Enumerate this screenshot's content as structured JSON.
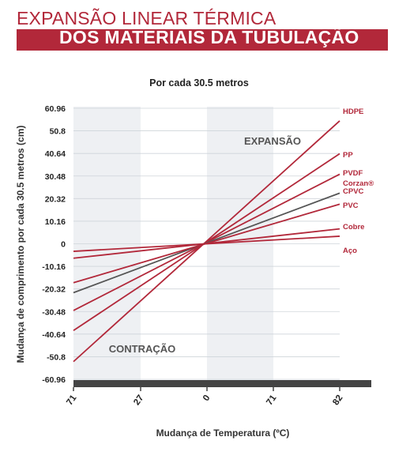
{
  "header": {
    "line1": "EXPANSÃO LINEAR TÉRMICA",
    "line2": "DOS MATERIAIS DA TUBULAÇÃO"
  },
  "colors": {
    "brand": "#b2283a",
    "series_red": "#b2283a",
    "series_gray": "#555555",
    "axis_bar": "#444444",
    "band": "#eef0f3"
  },
  "chart_data": {
    "type": "line",
    "title": "Por cada 30.5 metros",
    "xlabel": "Mudança de Temperatura (ºC)",
    "ylabel": "Mudança de comprimento por cada 30.5 metros (cm)",
    "x_ticks": [
      "71",
      "27",
      "0",
      "71",
      "82"
    ],
    "x_tick_positions": [
      -71,
      -27,
      0,
      71,
      82
    ],
    "xlim": [
      -71,
      82
    ],
    "y_ticks": [
      "60.96",
      "50.8",
      "40.64",
      "30.48",
      "20.32",
      "10.16",
      "0",
      "-10.16",
      "-20.32",
      "-30.48",
      "-40.64",
      "-50.8",
      "-60.96"
    ],
    "ylim": [
      -60.96,
      60.96
    ],
    "grid": "horizontal",
    "shaded_bands": [
      [
        -71,
        -27
      ],
      [
        0,
        71
      ]
    ],
    "annotations": [
      "EXPANSÃO",
      "CONTRAÇÃO"
    ],
    "series": [
      {
        "name": "HDPE",
        "x": [
          -71,
          82
        ],
        "y": [
          -53.0,
          55.3
        ],
        "color": "#b2283a"
      },
      {
        "name": "PP",
        "x": [
          -71,
          82
        ],
        "y": [
          -39.0,
          40.5
        ],
        "color": "#b2283a"
      },
      {
        "name": "PVDF",
        "x": [
          -71,
          82
        ],
        "y": [
          -30.0,
          31.3
        ],
        "color": "#b2283a"
      },
      {
        "name": "Corzan® CPVC",
        "x": [
          -71,
          82
        ],
        "y": [
          -22.0,
          22.8
        ],
        "color": "#555555"
      },
      {
        "name": "PVC",
        "x": [
          -71,
          82
        ],
        "y": [
          -17.5,
          17.8
        ],
        "color": "#b2283a"
      },
      {
        "name": "Cobre",
        "x": [
          -71,
          82
        ],
        "y": [
          -6.5,
          6.7
        ],
        "color": "#b2283a"
      },
      {
        "name": "Aço",
        "x": [
          -71,
          82
        ],
        "y": [
          -3.4,
          3.4
        ],
        "color": "#b2283a"
      }
    ]
  }
}
